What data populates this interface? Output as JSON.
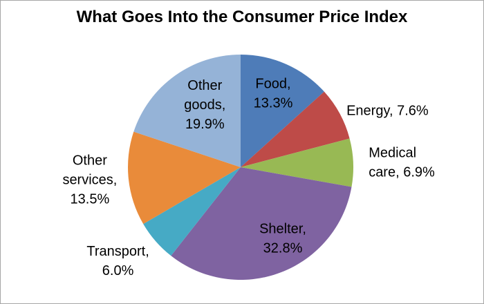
{
  "chart_data": {
    "type": "pie",
    "title": "What Goes Into the Consumer Price Index",
    "start_angle_deg": 0,
    "direction": "clockwise",
    "legend": "none",
    "label_style": "category-and-percent",
    "label_color": "#000000",
    "slices": [
      {
        "name": "Food",
        "value": 13.3,
        "color": "#4E7CB8",
        "label_lines": [
          "Food,",
          "13.3%"
        ]
      },
      {
        "name": "Energy",
        "value": 7.6,
        "color": "#BE4B48",
        "label_lines": [
          "Energy, 7.6%"
        ]
      },
      {
        "name": "Medical care",
        "value": 6.9,
        "color": "#98B954",
        "label_lines": [
          "Medical",
          "care, 6.9%"
        ]
      },
      {
        "name": "Shelter",
        "value": 32.8,
        "color": "#7F63A1",
        "label_lines": [
          "Shelter,",
          "32.8%"
        ]
      },
      {
        "name": "Transport",
        "value": 6.0,
        "color": "#46AAC5",
        "label_lines": [
          "Transport,",
          "6.0%"
        ]
      },
      {
        "name": "Other services",
        "value": 13.5,
        "color": "#E98B3A",
        "label_lines": [
          "Other",
          "services,",
          "13.5%"
        ]
      },
      {
        "name": "Other goods",
        "value": 19.9,
        "color": "#95B3D7",
        "label_lines": [
          "Other",
          "goods,",
          "19.9%"
        ]
      }
    ]
  }
}
